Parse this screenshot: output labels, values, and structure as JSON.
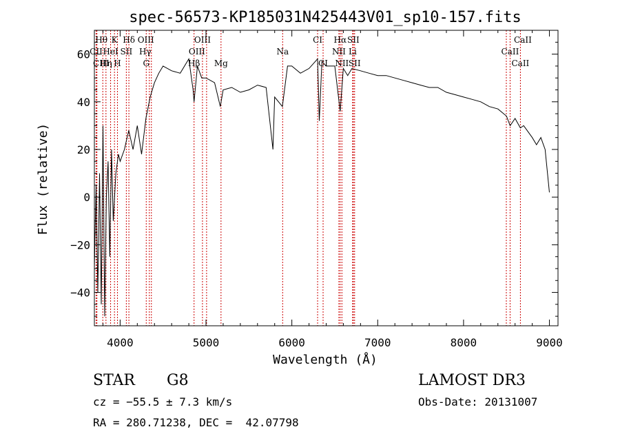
{
  "chart_data": {
    "type": "line",
    "title": "spec-56573-KP185031N425443V01_sp10-157.fits",
    "xlabel": "Wavelength (Å)",
    "ylabel": "Flux (relative)",
    "xlim": [
      3700,
      9100
    ],
    "ylim": [
      -54,
      70
    ],
    "x_ticks": [
      4000,
      5000,
      6000,
      7000,
      8000,
      9000
    ],
    "y_ticks": [
      -40,
      -20,
      0,
      20,
      40,
      60
    ],
    "x_minor_step": 200,
    "y_minor_step": 5,
    "series": [
      {
        "x": [
          3700,
          3720,
          3740,
          3760,
          3780,
          3800,
          3820,
          3840,
          3860,
          3880,
          3900,
          3920,
          3950,
          3980,
          4000,
          4050,
          4100,
          4150,
          4200,
          4250,
          4300,
          4350,
          4400,
          4450,
          4500,
          4600,
          4700,
          4800,
          4850,
          4861,
          4900,
          4950,
          5000,
          5100,
          5167,
          5200,
          5300,
          5400,
          5500,
          5600,
          5700,
          5780,
          5800,
          5890,
          5950,
          6000,
          6100,
          6200,
          6300,
          6320,
          6350,
          6400,
          6500,
          6563,
          6600,
          6650,
          6700,
          6800,
          6900,
          7000,
          7100,
          7200,
          7300,
          7400,
          7500,
          7600,
          7700,
          7800,
          7900,
          8000,
          8100,
          8200,
          8300,
          8400,
          8500,
          8542,
          8600,
          8662,
          8700,
          8800,
          8850,
          8900,
          8950,
          9000
        ],
        "y": [
          -30,
          5,
          -40,
          10,
          -45,
          30,
          -50,
          0,
          15,
          -25,
          20,
          -10,
          10,
          18,
          15,
          20,
          28,
          20,
          30,
          18,
          33,
          42,
          48,
          52,
          55,
          53,
          52,
          58,
          45,
          40,
          55,
          50,
          50,
          48,
          38,
          45,
          46,
          44,
          45,
          47,
          46,
          20,
          42,
          38,
          55,
          55,
          52,
          54,
          58,
          32,
          57,
          55,
          55,
          36,
          54,
          51,
          54,
          53,
          52,
          51,
          51,
          50,
          49,
          48,
          47,
          46,
          46,
          44,
          43,
          42,
          41,
          40,
          38,
          37,
          34,
          30,
          33,
          29,
          30,
          25,
          22,
          25,
          20,
          2
        ]
      }
    ],
    "spectral_lines": [
      {
        "label": "Hθ",
        "x": 3798,
        "row": 1,
        "dx": -2
      },
      {
        "label": "CII",
        "x": 3720,
        "row": 2,
        "dx": 0
      },
      {
        "label": "CIII",
        "x": 3730,
        "row": 3,
        "dx": 6
      },
      {
        "label": "K",
        "x": 3934,
        "row": 1,
        "dx": 0
      },
      {
        "label": "HeI",
        "x": 3889,
        "row": 2,
        "dx": 0
      },
      {
        "label": "Hη",
        "x": 3835,
        "row": 3,
        "dx": 0
      },
      {
        "label": "H",
        "x": 3969,
        "row": 3,
        "dx": 0
      },
      {
        "label": "Hδ",
        "x": 4102,
        "row": 1,
        "dx": 0
      },
      {
        "label": "SII",
        "x": 4072,
        "row": 2,
        "dx": 0
      },
      {
        "label": "OIII",
        "x": 4364,
        "row": 1,
        "dx": -8
      },
      {
        "label": "Hγ",
        "x": 4340,
        "row": 2,
        "dx": -6
      },
      {
        "label": "G",
        "x": 4304,
        "row": 3,
        "dx": 0
      },
      {
        "label": "Hβ",
        "x": 4861,
        "row": 3,
        "dx": 0
      },
      {
        "label": "OIII",
        "x": 4959,
        "row": 1,
        "dx": 0
      },
      {
        "label": "OIII",
        "x": 5007,
        "row": 2,
        "dx": -14
      },
      {
        "label": "Mg",
        "x": 5175,
        "row": 3,
        "dx": 0
      },
      {
        "label": "Na",
        "x": 5893,
        "row": 2,
        "dx": 0
      },
      {
        "label": "CI",
        "x": 6300,
        "row": 1,
        "dx": 0
      },
      {
        "label": "CI",
        "x": 6364,
        "row": 3,
        "dx": 0
      },
      {
        "label": "Hα",
        "x": 6563,
        "row": 1,
        "dx": 0
      },
      {
        "label": "NII",
        "x": 6548,
        "row": 2,
        "dx": 0
      },
      {
        "label": "NII",
        "x": 6583,
        "row": 3,
        "dx": 0
      },
      {
        "label": "SII",
        "x": 6716,
        "row": 1,
        "dx": 0
      },
      {
        "label": "Li",
        "x": 6708,
        "row": 2,
        "dx": 0
      },
      {
        "label": "SII",
        "x": 6731,
        "row": 3,
        "dx": 0
      },
      {
        "label": "CaII",
        "x": 8498,
        "row": 1,
        "dx": 24
      },
      {
        "label": "CaII",
        "x": 8542,
        "row": 2,
        "dx": 0
      },
      {
        "label": "CaII",
        "x": 8662,
        "row": 3,
        "dx": 0
      }
    ]
  },
  "info": {
    "object_class": "STAR",
    "subclass": "G8",
    "survey": "LAMOST DR3",
    "cz": "cz = −55.5 ± 7.3 km/s",
    "obs_date": "Obs-Date: 20131007",
    "coords": "RA = 280.71238, DEC =  42.07798"
  }
}
